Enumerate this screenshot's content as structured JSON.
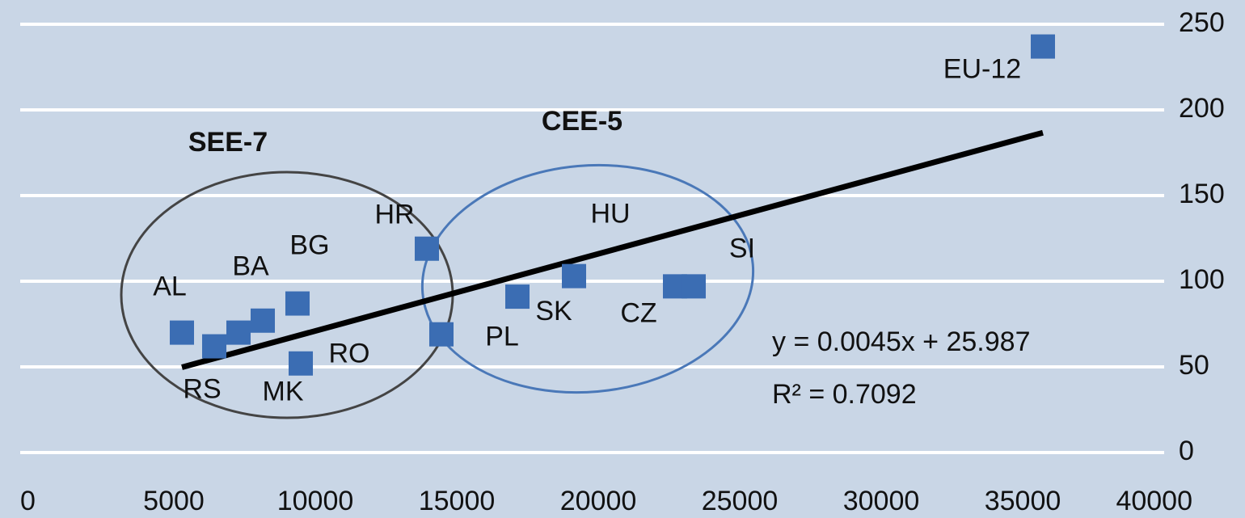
{
  "chart_data": {
    "type": "scatter",
    "x": [
      5286,
      6429,
      7286,
      8143,
      9371,
      9486,
      13943,
      14457,
      17143,
      19143,
      22714,
      23371,
      35714
    ],
    "values": [
      70,
      62,
      70,
      77,
      87,
      52,
      119,
      69,
      91,
      103,
      97,
      97,
      237
    ],
    "point_labels": [
      "AL",
      "RS",
      "MK",
      "BA",
      "BG",
      "RO",
      "HR",
      "PL",
      "SK",
      "HU",
      "CZ",
      "SI",
      "EU-12"
    ],
    "color": "#3b6db3",
    "xlim": [
      0,
      40000
    ],
    "xticks": [
      0,
      5000,
      10000,
      15000,
      20000,
      25000,
      30000,
      35000,
      40000
    ],
    "ylim": [
      0,
      250
    ],
    "yticks": [
      0,
      50,
      100,
      150,
      200,
      250
    ],
    "grid": true,
    "trendline": {
      "slope": 0.0045,
      "intercept": 25.987,
      "equation": "y = 0.0045x + 25.987",
      "r_squared": "R² = 0.7092"
    },
    "groups": [
      {
        "name": "SEE-7",
        "color": "#444444"
      },
      {
        "name": "CEE-5",
        "color": "#4a78b8"
      }
    ]
  }
}
